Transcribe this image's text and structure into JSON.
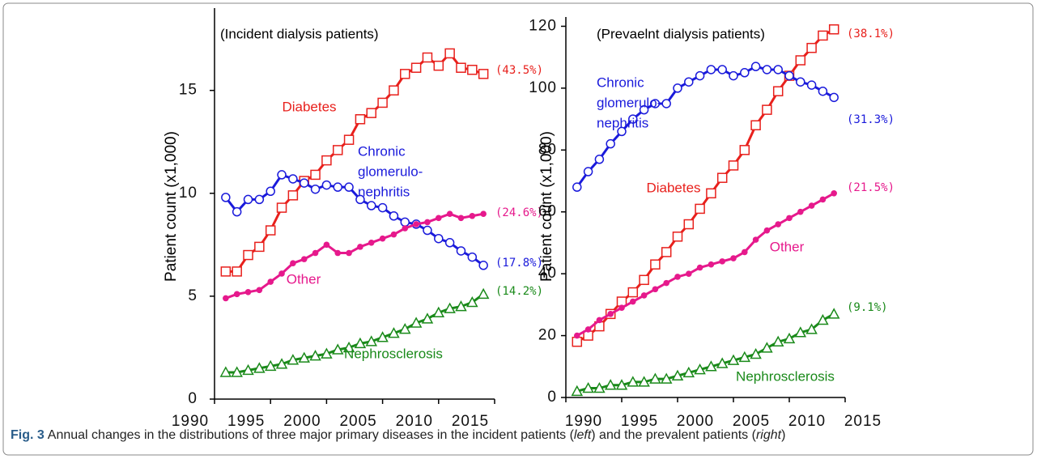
{
  "chart_data": [
    {
      "type": "line",
      "title": "(Incident dialysis patients)",
      "y_label": "Patient count (x1,000)",
      "x": [
        1991,
        1992,
        1993,
        1994,
        1995,
        1996,
        1997,
        1998,
        1999,
        2000,
        2001,
        2002,
        2003,
        2004,
        2005,
        2006,
        2007,
        2008,
        2009,
        2010,
        2011,
        2012,
        2013,
        2014
      ],
      "xlim": [
        1990,
        2015
      ],
      "xticks": [
        1990,
        1995,
        2000,
        2005,
        2010,
        2015
      ],
      "ylim": [
        0,
        19
      ],
      "yticks": [
        0,
        5,
        10,
        15
      ],
      "series": [
        {
          "label": [
            "Diabetes"
          ],
          "end_label": "(43.5%)",
          "color": "#e8201c",
          "marker": "square",
          "values": [
            6.2,
            6.2,
            7.0,
            7.4,
            8.2,
            9.3,
            9.9,
            10.6,
            10.9,
            11.6,
            12.1,
            12.6,
            13.6,
            13.9,
            14.4,
            15.0,
            15.8,
            16.1,
            16.6,
            16.2,
            16.8,
            16.1,
            16.0,
            15.8
          ]
        },
        {
          "label": [
            "Chronic",
            "glomerulo-",
            "nephritis"
          ],
          "end_label": "(17.8%)",
          "color": "#1a1adb",
          "marker": "circle",
          "values": [
            9.8,
            9.1,
            9.7,
            9.7,
            10.1,
            10.9,
            10.7,
            10.5,
            10.2,
            10.4,
            10.3,
            10.3,
            9.7,
            9.4,
            9.3,
            8.9,
            8.6,
            8.5,
            8.2,
            7.8,
            7.6,
            7.2,
            6.9,
            6.5
          ]
        },
        {
          "label": [
            "Other"
          ],
          "end_label": "(24.6%)",
          "color": "#e6198c",
          "marker": "dot",
          "values": [
            4.9,
            5.1,
            5.2,
            5.3,
            5.7,
            6.1,
            6.6,
            6.8,
            7.1,
            7.5,
            7.1,
            7.1,
            7.4,
            7.6,
            7.8,
            8.0,
            8.3,
            8.5,
            8.6,
            8.8,
            9.0,
            8.8,
            8.9,
            9.0
          ]
        },
        {
          "label": [
            "Nephrosclerosis"
          ],
          "end_label": "(14.2%)",
          "color": "#1a8a1a",
          "marker": "triangle",
          "values": [
            1.3,
            1.3,
            1.4,
            1.5,
            1.6,
            1.7,
            1.9,
            2.0,
            2.1,
            2.2,
            2.4,
            2.5,
            2.7,
            2.8,
            3.0,
            3.2,
            3.4,
            3.7,
            3.9,
            4.2,
            4.4,
            4.5,
            4.7,
            5.1
          ]
        }
      ]
    },
    {
      "type": "line",
      "title": "(Prevaelnt dialysis patients)",
      "y_label": "Patient count (x1,000)",
      "x": [
        1991,
        1992,
        1993,
        1994,
        1995,
        1996,
        1997,
        1998,
        1999,
        2000,
        2001,
        2002,
        2003,
        2004,
        2005,
        2006,
        2007,
        2008,
        2009,
        2010,
        2011,
        2012,
        2013,
        2014
      ],
      "xlim": [
        1990,
        2015
      ],
      "xticks": [
        1990,
        1995,
        2000,
        2005,
        2010,
        2015
      ],
      "ylim": [
        0,
        123
      ],
      "yticks": [
        0,
        20,
        40,
        60,
        80,
        100,
        120
      ],
      "series": [
        {
          "label": [
            "Diabetes"
          ],
          "end_label": "(38.1%)",
          "color": "#e8201c",
          "marker": "square",
          "values": [
            18,
            20,
            23,
            27,
            31,
            34,
            38,
            43,
            47,
            52,
            56,
            61,
            66,
            71,
            75,
            80,
            88,
            93,
            99,
            104,
            109,
            113,
            117,
            119
          ]
        },
        {
          "label": [
            "Chronic",
            "glomerulo-",
            "nephritis"
          ],
          "end_label": "(31.3%)",
          "color": "#1a1adb",
          "marker": "circle",
          "values": [
            68,
            73,
            77,
            82,
            86,
            90,
            93,
            95,
            95,
            100,
            102,
            104,
            106,
            106,
            104,
            105,
            107,
            106,
            106,
            104,
            102,
            101,
            99,
            97
          ]
        },
        {
          "label": [
            "Other"
          ],
          "end_label": "(21.5%)",
          "color": "#e6198c",
          "marker": "dot",
          "values": [
            20,
            22,
            25,
            27,
            29,
            31,
            33,
            35,
            37,
            39,
            40,
            42,
            43,
            44,
            45,
            47,
            51,
            54,
            56,
            58,
            60,
            62,
            64,
            66
          ]
        },
        {
          "label": [
            "Nephrosclerosis"
          ],
          "end_label": "(9.1%)",
          "color": "#1a8a1a",
          "marker": "triangle",
          "values": [
            2,
            3,
            3,
            4,
            4,
            5,
            5,
            6,
            6,
            7,
            8,
            9,
            10,
            11,
            12,
            13,
            14,
            16,
            18,
            19,
            21,
            22,
            25,
            27
          ]
        }
      ]
    }
  ],
  "caption": {
    "label": "Fig. 3",
    "parts": [
      "Annual changes in the distributions of three major primary diseases in the incident patients (",
      "left",
      ") and the prevalent patients (",
      "right",
      ")"
    ]
  }
}
